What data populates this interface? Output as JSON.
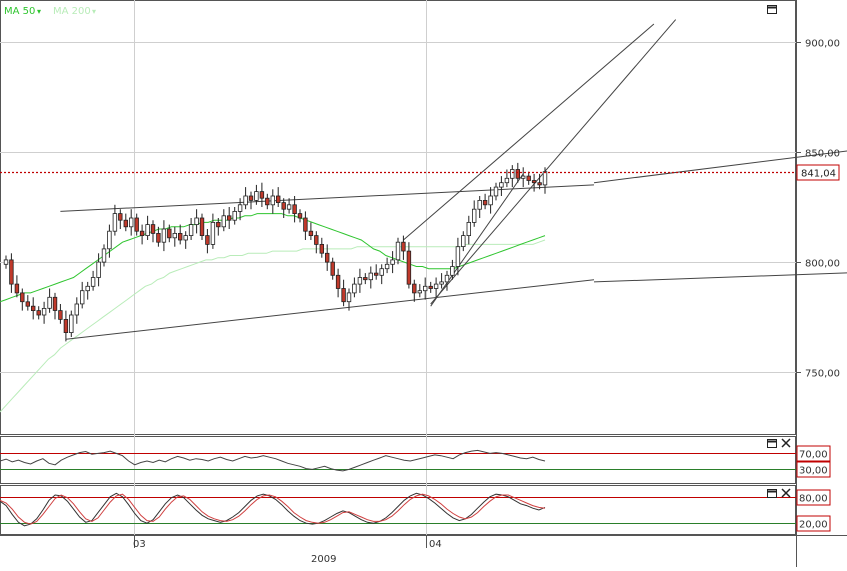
{
  "legend": {
    "ma50_label": "MA 50",
    "ma200_label": "MA 200",
    "ma50_color": "#2fc52f",
    "ma200_color": "#b9ecb9"
  },
  "colors": {
    "up": "#ffffff",
    "down": "#c0392b",
    "wick": "#222222",
    "grid": "#cfcfcf",
    "price_line": "#c00000",
    "trend": "#444444",
    "band": "#c00000"
  },
  "chart_data": [
    {
      "type": "candlestick",
      "title": "",
      "xlabel": "",
      "ylabel": "",
      "ylim": [
        722,
        918
      ],
      "y_ticks": [
        "900,00",
        "850,00",
        "800,00",
        "750,00"
      ],
      "y_tick_values": [
        900,
        850,
        800,
        750
      ],
      "x_ticks": [
        "03",
        "04"
      ],
      "x_year": "2009",
      "last_price": 841.04,
      "last_price_label": "841,04",
      "grid": true,
      "series": [
        {
          "kind": "close",
          "values": [
            801,
            790,
            786,
            782,
            780,
            778,
            776,
            779,
            784,
            778,
            774,
            768,
            776,
            781,
            787,
            789,
            793,
            800,
            806,
            814,
            822,
            819,
            816,
            820,
            814,
            812,
            817,
            813,
            809,
            815,
            811,
            813,
            810,
            812,
            817,
            820,
            812,
            808,
            818,
            816,
            821,
            819,
            823,
            826,
            830,
            828,
            832,
            829,
            826,
            830,
            827,
            824,
            826,
            822,
            820,
            814,
            812,
            808,
            804,
            800,
            794,
            788,
            782,
            786,
            790,
            793,
            792,
            795,
            794,
            797,
            799,
            801,
            809,
            805,
            790,
            786,
            787,
            789,
            788,
            790,
            791,
            794,
            798,
            807,
            812,
            818,
            824,
            828,
            826,
            830,
            834,
            836,
            838,
            842,
            838,
            839,
            837,
            836,
            835,
            841
          ]
        },
        {
          "name": "MA 50",
          "kind": "ma50",
          "values": [
            782,
            783,
            784,
            785,
            786,
            786,
            787,
            788,
            789,
            790,
            791,
            792,
            793,
            795,
            797,
            799,
            801,
            803,
            805,
            807,
            809,
            810,
            811,
            812,
            813,
            814,
            815,
            815,
            816,
            816,
            816,
            817,
            817,
            818,
            818,
            819,
            819,
            819,
            820,
            820,
            821,
            821,
            822,
            822,
            822,
            822,
            822,
            821,
            821,
            820,
            819,
            818,
            817,
            816,
            815,
            814,
            813,
            812,
            811,
            810,
            808,
            806,
            805,
            803,
            802,
            801,
            800,
            799,
            798,
            798,
            797,
            797,
            797,
            797,
            797,
            798,
            799,
            800,
            801,
            802,
            803,
            804,
            805,
            806,
            807,
            808,
            809,
            810,
            811,
            812
          ]
        },
        {
          "name": "MA 200",
          "kind": "ma200",
          "values": [
            732,
            735,
            738,
            741,
            744,
            747,
            750,
            753,
            756,
            758,
            761,
            763,
            765,
            767,
            769,
            771,
            773,
            775,
            777,
            779,
            781,
            783,
            785,
            787,
            789,
            790,
            792,
            793,
            795,
            796,
            797,
            798,
            799,
            800,
            801,
            801,
            802,
            802,
            803,
            803,
            803,
            804,
            804,
            804,
            804,
            805,
            805,
            805,
            805,
            805,
            806,
            806,
            806,
            806,
            806,
            806,
            806,
            806,
            806,
            807,
            807,
            807,
            807,
            807,
            807,
            807,
            807,
            807,
            807,
            807,
            807,
            807,
            807,
            807,
            807,
            807,
            807,
            808,
            808,
            808,
            808,
            808,
            808,
            808,
            808,
            808,
            808,
            808,
            808,
            809,
            810
          ]
        }
      ]
    },
    {
      "type": "line",
      "title": "",
      "ylim": [
        0,
        100
      ],
      "y_tick_labels": [
        "70,00",
        "30,00"
      ],
      "y_tick_values": [
        70,
        30
      ],
      "series": [
        {
          "kind": "osc",
          "values": [
            50,
            55,
            48,
            52,
            46,
            42,
            50,
            56,
            44,
            40,
            52,
            60,
            66,
            72,
            75,
            68,
            70,
            72,
            76,
            70,
            64,
            50,
            40,
            46,
            50,
            46,
            52,
            48,
            56,
            62,
            58,
            52,
            56,
            54,
            50,
            56,
            60,
            54,
            50,
            56,
            62,
            58,
            60,
            64,
            60,
            56,
            50,
            44,
            40,
            36,
            30,
            28,
            32,
            36,
            30,
            26,
            24,
            28,
            34,
            40,
            46,
            52,
            58,
            64,
            60,
            56,
            52,
            50,
            54,
            58,
            62,
            66,
            64,
            60,
            56,
            66,
            72,
            76,
            78,
            74,
            70,
            72,
            70,
            66,
            62,
            58,
            56,
            60,
            54,
            50
          ]
        }
      ]
    },
    {
      "type": "line",
      "title": "",
      "ylim": [
        0,
        100
      ],
      "y_tick_labels": [
        "80,00",
        "20,00"
      ],
      "y_tick_values": [
        80,
        20
      ],
      "series": [
        {
          "kind": "k",
          "values": [
            70,
            60,
            40,
            22,
            14,
            18,
            30,
            50,
            72,
            84,
            82,
            70,
            52,
            34,
            22,
            26,
            44,
            62,
            80,
            88,
            80,
            62,
            42,
            26,
            20,
            28,
            46,
            64,
            78,
            84,
            78,
            64,
            50,
            38,
            30,
            26,
            22,
            26,
            34,
            44,
            58,
            72,
            82,
            86,
            82,
            74,
            62,
            48,
            36,
            26,
            20,
            18,
            20,
            26,
            34,
            42,
            48,
            44,
            36,
            28,
            22,
            20,
            24,
            32,
            44,
            58,
            72,
            82,
            88,
            84,
            76,
            66,
            54,
            42,
            32,
            26,
            30,
            40,
            54,
            68,
            80,
            86,
            84,
            80,
            72,
            64,
            60,
            54,
            50,
            56
          ]
        },
        {
          "kind": "d",
          "values": [
            72,
            66,
            52,
            34,
            22,
            18,
            24,
            40,
            58,
            76,
            84,
            78,
            64,
            46,
            30,
            24,
            32,
            50,
            68,
            82,
            86,
            74,
            56,
            38,
            26,
            24,
            34,
            52,
            68,
            80,
            82,
            74,
            60,
            46,
            36,
            30,
            26,
            24,
            28,
            36,
            48,
            62,
            74,
            82,
            84,
            80,
            70,
            58,
            44,
            34,
            26,
            22,
            20,
            22,
            28,
            36,
            44,
            46,
            40,
            34,
            28,
            24,
            24,
            28,
            36,
            48,
            62,
            74,
            82,
            86,
            82,
            74,
            64,
            52,
            42,
            34,
            30,
            34,
            44,
            58,
            70,
            80,
            84,
            84,
            78,
            72,
            66,
            60,
            56,
            54
          ]
        }
      ]
    }
  ]
}
